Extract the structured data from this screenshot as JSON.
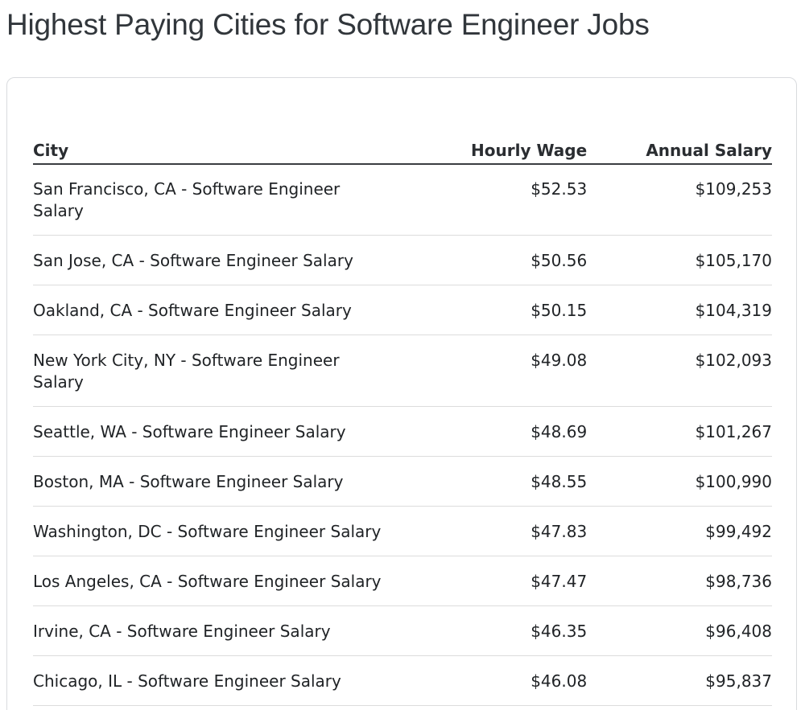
{
  "page": {
    "title": "Highest Paying Cities for Software Engineer Jobs"
  },
  "table": {
    "columns": {
      "city": "City",
      "hourly": "Hourly Wage",
      "annual": "Annual Salary"
    },
    "rows": [
      {
        "city": "San Francisco, CA - Software Engineer Salary",
        "hourly": "$52.53",
        "annual": "$109,253"
      },
      {
        "city": "San Jose, CA - Software Engineer Salary",
        "hourly": "$50.56",
        "annual": "$105,170"
      },
      {
        "city": "Oakland, CA - Software Engineer Salary",
        "hourly": "$50.15",
        "annual": "$104,319"
      },
      {
        "city": "New York City, NY - Software Engineer Salary",
        "hourly": "$49.08",
        "annual": "$102,093"
      },
      {
        "city": "Seattle, WA - Software Engineer Salary",
        "hourly": "$48.69",
        "annual": "$101,267"
      },
      {
        "city": "Boston, MA - Software Engineer Salary",
        "hourly": "$48.55",
        "annual": "$100,990"
      },
      {
        "city": "Washington, DC - Software Engineer Salary",
        "hourly": "$47.83",
        "annual": "$99,492"
      },
      {
        "city": "Los Angeles, CA - Software Engineer Salary",
        "hourly": "$47.47",
        "annual": "$98,736"
      },
      {
        "city": "Irvine, CA - Software Engineer Salary",
        "hourly": "$46.35",
        "annual": "$96,408"
      },
      {
        "city": "Chicago, IL - Software Engineer Salary",
        "hourly": "$46.08",
        "annual": "$95,837"
      }
    ]
  }
}
